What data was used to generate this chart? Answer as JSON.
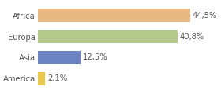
{
  "categories": [
    "America",
    "Asia",
    "Europa",
    "Africa"
  ],
  "values": [
    2.1,
    12.5,
    40.8,
    44.5
  ],
  "labels": [
    "2,1%",
    "12,5%",
    "40,8%",
    "44,5%"
  ],
  "colors": [
    "#e8c84a",
    "#6b83c2",
    "#b5c98a",
    "#e8b882"
  ],
  "xlim": [
    0,
    52
  ],
  "bar_height": 0.62,
  "background_color": "#ffffff",
  "label_fontsize": 7.2,
  "tick_fontsize": 7.2
}
